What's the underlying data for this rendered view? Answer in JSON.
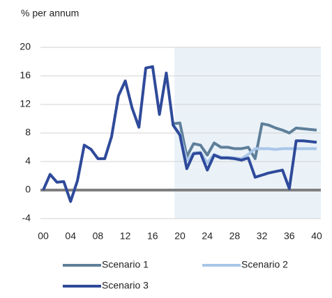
{
  "chart_data": {
    "type": "line",
    "y_axis_label": "% per annum",
    "x": [
      0,
      1,
      2,
      3,
      4,
      5,
      6,
      7,
      8,
      9,
      10,
      11,
      12,
      13,
      14,
      15,
      16,
      17,
      18,
      19,
      20,
      21,
      22,
      23,
      24,
      25,
      26,
      27,
      28,
      29,
      30,
      31,
      32,
      33,
      34,
      35,
      36,
      37,
      38,
      39,
      40
    ],
    "series": [
      {
        "name": "Scenario 1",
        "color": "#5f7f99",
        "values": [
          null,
          null,
          null,
          null,
          null,
          null,
          null,
          null,
          null,
          null,
          null,
          null,
          null,
          null,
          null,
          null,
          null,
          null,
          null,
          9.3,
          9.4,
          4.7,
          6.5,
          6.3,
          4.9,
          6.6,
          6.0,
          6.0,
          5.8,
          5.8,
          6.0,
          4.4,
          9.3,
          9.1,
          8.7,
          8.4,
          8.0,
          8.7,
          8.6,
          8.5,
          8.4
        ]
      },
      {
        "name": "Scenario 2",
        "color": "#a9c6e8",
        "values": [
          null,
          null,
          null,
          null,
          null,
          null,
          null,
          null,
          null,
          null,
          null,
          null,
          null,
          null,
          null,
          null,
          null,
          null,
          null,
          9.1,
          7.9,
          4.1,
          5.2,
          5.3,
          3.8,
          5.0,
          4.6,
          4.6,
          4.5,
          4.4,
          5.0,
          5.8,
          5.8,
          5.8,
          5.7,
          5.8,
          5.8,
          5.8,
          5.8,
          5.8,
          5.8
        ]
      },
      {
        "name": "Scenario 3",
        "color": "#2e4a9a",
        "values": [
          0,
          2.2,
          1.1,
          1.2,
          -1.6,
          1.3,
          6.3,
          5.7,
          4.4,
          4.4,
          7.5,
          13.2,
          15.3,
          11.5,
          8.8,
          17.1,
          17.3,
          10.6,
          16.4,
          9.1,
          7.7,
          3.0,
          5.1,
          5.2,
          2.8,
          4.9,
          4.5,
          4.5,
          4.4,
          4.2,
          4.5,
          1.8,
          2.1,
          2.4,
          2.6,
          2.8,
          0.2,
          6.9,
          6.9,
          6.8,
          6.7
        ]
      }
    ],
    "xlim": [
      0,
      40
    ],
    "ylim": [
      -4,
      20
    ],
    "xticks": [
      {
        "value": 0,
        "label": "00"
      },
      {
        "value": 4,
        "label": "04"
      },
      {
        "value": 8,
        "label": "08"
      },
      12,
      16,
      20,
      24,
      28,
      32,
      36,
      40
    ],
    "yticks": [
      -4,
      0,
      4,
      8,
      12,
      16,
      20
    ],
    "shade_xlim": [
      19.2,
      40
    ],
    "shade_color": "#eaf2f8",
    "grid": true
  }
}
